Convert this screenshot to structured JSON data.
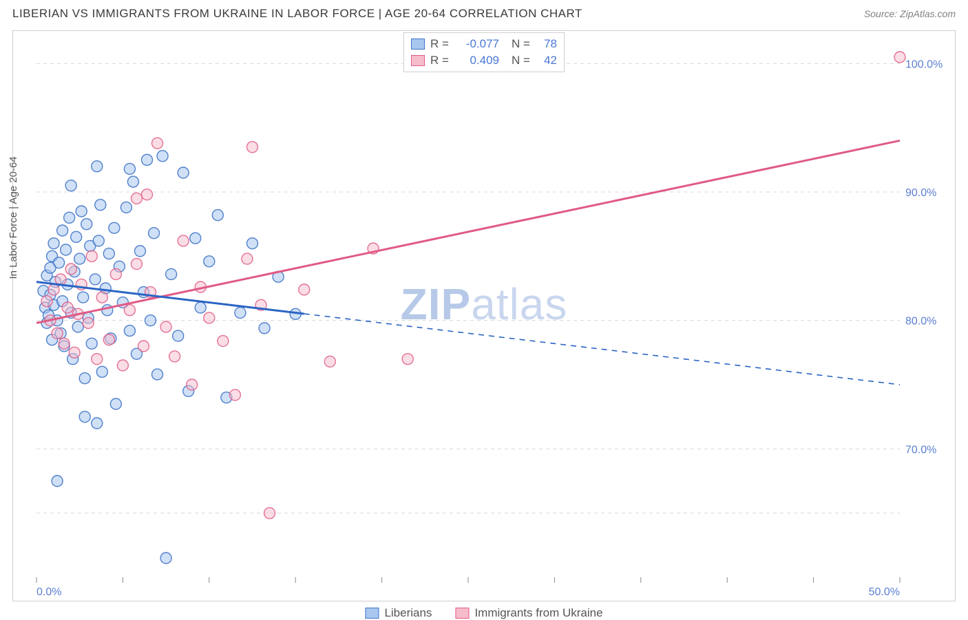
{
  "title": "LIBERIAN VS IMMIGRANTS FROM UKRAINE IN LABOR FORCE | AGE 20-64 CORRELATION CHART",
  "source": "Source: ZipAtlas.com",
  "ylabel": "In Labor Force | Age 20-64",
  "watermark_a": "ZIP",
  "watermark_b": "atlas",
  "chart": {
    "type": "scatter",
    "background": "#ffffff",
    "grid_color": "#d8d8d8",
    "xlim": [
      0,
      50
    ],
    "ylim": [
      60,
      102
    ],
    "xtick_step": 5,
    "yticks": [
      70,
      80,
      90,
      100
    ],
    "xlabel_ticks": [
      "0.0%",
      "50.0%"
    ],
    "ytick_labels": [
      "70.0%",
      "80.0%",
      "90.0%",
      "100.0%"
    ],
    "y_grid_extra": 65
  },
  "series": {
    "blue": {
      "name": "Liberians",
      "fill": "#a9c7ef",
      "fill_opacity": 0.55,
      "stroke": "#3f74c8",
      "stroke_opacity": 0.9,
      "radius": 8,
      "R": "-0.077",
      "N": "78",
      "trend": {
        "y_at_x0": 83.0,
        "y_at_x50": 75.0,
        "solid_until_x": 15.5,
        "color": "#2a64c4",
        "width": 3
      },
      "points": [
        [
          0.4,
          82.3
        ],
        [
          0.5,
          81.0
        ],
        [
          0.6,
          79.8
        ],
        [
          0.6,
          83.5
        ],
        [
          0.7,
          80.4
        ],
        [
          0.8,
          84.1
        ],
        [
          0.8,
          82.0
        ],
        [
          0.9,
          85.0
        ],
        [
          0.9,
          78.5
        ],
        [
          1.0,
          81.2
        ],
        [
          1.0,
          86.0
        ],
        [
          1.1,
          83.0
        ],
        [
          1.2,
          80.0
        ],
        [
          1.3,
          84.5
        ],
        [
          1.4,
          79.0
        ],
        [
          1.5,
          87.0
        ],
        [
          1.5,
          81.5
        ],
        [
          1.6,
          78.0
        ],
        [
          1.7,
          85.5
        ],
        [
          1.8,
          82.8
        ],
        [
          1.9,
          88.0
        ],
        [
          2.0,
          80.6
        ],
        [
          2.0,
          90.5
        ],
        [
          2.1,
          77.0
        ],
        [
          2.2,
          83.8
        ],
        [
          2.3,
          86.5
        ],
        [
          2.4,
          79.5
        ],
        [
          2.5,
          84.8
        ],
        [
          2.6,
          88.5
        ],
        [
          2.7,
          81.8
        ],
        [
          2.8,
          75.5
        ],
        [
          2.9,
          87.5
        ],
        [
          3.0,
          80.2
        ],
        [
          3.1,
          85.8
        ],
        [
          3.2,
          78.2
        ],
        [
          3.4,
          83.2
        ],
        [
          3.5,
          72.0
        ],
        [
          3.6,
          86.2
        ],
        [
          3.7,
          89.0
        ],
        [
          3.8,
          76.0
        ],
        [
          4.0,
          82.5
        ],
        [
          4.1,
          80.8
        ],
        [
          4.2,
          85.2
        ],
        [
          4.3,
          78.6
        ],
        [
          4.5,
          87.2
        ],
        [
          4.6,
          73.5
        ],
        [
          4.8,
          84.2
        ],
        [
          5.0,
          81.4
        ],
        [
          5.2,
          88.8
        ],
        [
          5.4,
          79.2
        ],
        [
          5.6,
          90.8
        ],
        [
          5.8,
          77.4
        ],
        [
          6.0,
          85.4
        ],
        [
          6.2,
          82.2
        ],
        [
          6.4,
          92.5
        ],
        [
          6.6,
          80.0
        ],
        [
          6.8,
          86.8
        ],
        [
          7.0,
          75.8
        ],
        [
          7.3,
          92.8
        ],
        [
          7.5,
          61.5
        ],
        [
          7.8,
          83.6
        ],
        [
          8.2,
          78.8
        ],
        [
          8.5,
          91.5
        ],
        [
          8.8,
          74.5
        ],
        [
          9.2,
          86.4
        ],
        [
          9.5,
          81.0
        ],
        [
          10.0,
          84.6
        ],
        [
          10.5,
          88.2
        ],
        [
          11.0,
          74.0
        ],
        [
          1.2,
          67.5
        ],
        [
          2.8,
          72.5
        ],
        [
          11.8,
          80.6
        ],
        [
          12.5,
          86.0
        ],
        [
          13.2,
          79.4
        ],
        [
          14.0,
          83.4
        ],
        [
          15.0,
          80.5
        ],
        [
          3.5,
          92.0
        ],
        [
          5.4,
          91.8
        ]
      ]
    },
    "pink": {
      "name": "Immigrants from Ukraine",
      "fill": "#f6bccb",
      "fill_opacity": 0.5,
      "stroke": "#e05a84",
      "stroke_opacity": 0.85,
      "radius": 8,
      "R": "0.409",
      "N": "42",
      "trend": {
        "y_at_x0": 79.8,
        "y_at_x50": 94.0,
        "solid_until_x": 50,
        "color": "#e05a84",
        "width": 3
      },
      "points": [
        [
          0.6,
          81.5
        ],
        [
          0.8,
          80.0
        ],
        [
          1.0,
          82.4
        ],
        [
          1.2,
          79.0
        ],
        [
          1.4,
          83.2
        ],
        [
          1.6,
          78.2
        ],
        [
          1.8,
          81.0
        ],
        [
          2.0,
          84.0
        ],
        [
          2.2,
          77.5
        ],
        [
          2.4,
          80.5
        ],
        [
          2.6,
          82.8
        ],
        [
          3.0,
          79.8
        ],
        [
          3.2,
          85.0
        ],
        [
          3.5,
          77.0
        ],
        [
          3.8,
          81.8
        ],
        [
          4.2,
          78.5
        ],
        [
          4.6,
          83.6
        ],
        [
          5.0,
          76.5
        ],
        [
          5.4,
          80.8
        ],
        [
          5.8,
          84.4
        ],
        [
          6.2,
          78.0
        ],
        [
          6.6,
          82.2
        ],
        [
          7.0,
          93.8
        ],
        [
          7.5,
          79.5
        ],
        [
          8.0,
          77.2
        ],
        [
          8.5,
          86.2
        ],
        [
          9.0,
          75.0
        ],
        [
          9.5,
          82.6
        ],
        [
          10.0,
          80.2
        ],
        [
          10.8,
          78.4
        ],
        [
          11.5,
          74.2
        ],
        [
          12.2,
          84.8
        ],
        [
          12.5,
          93.5
        ],
        [
          13.0,
          81.2
        ],
        [
          13.5,
          65.0
        ],
        [
          15.5,
          82.4
        ],
        [
          17.0,
          76.8
        ],
        [
          19.5,
          85.6
        ],
        [
          21.5,
          77.0
        ],
        [
          5.8,
          89.5
        ],
        [
          50.0,
          100.5
        ],
        [
          6.4,
          89.8
        ]
      ]
    }
  },
  "legend_bottom": [
    {
      "key": "blue"
    },
    {
      "key": "pink"
    }
  ]
}
